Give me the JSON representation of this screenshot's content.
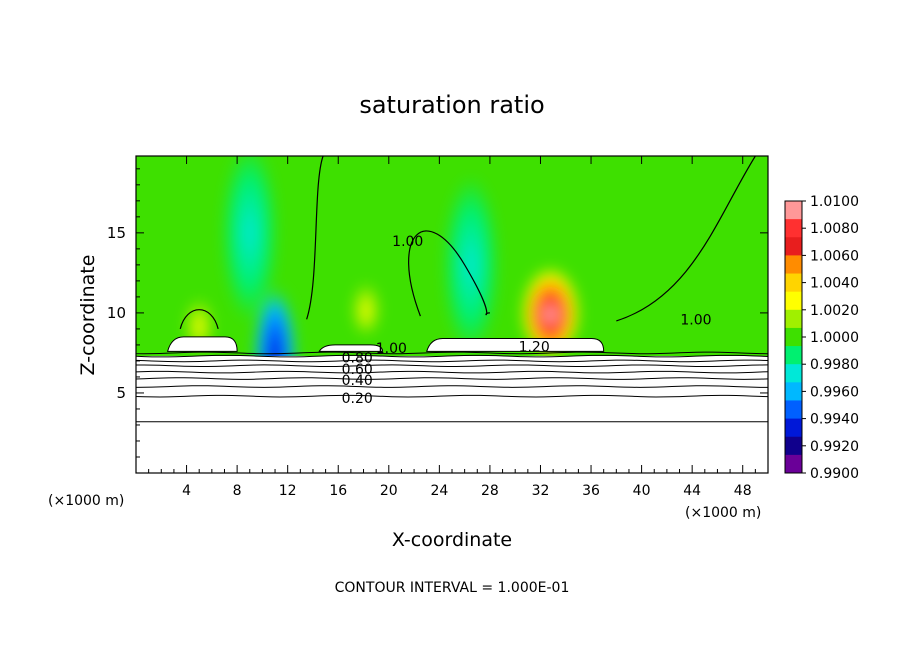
{
  "chart_data": {
    "type": "heatmap",
    "title": "saturation ratio",
    "xlabel": "X-coordinate",
    "ylabel": "Z-coordinate",
    "x_units": "(×1000 m)",
    "z_units": "(×1000 m)",
    "xlim": [
      0,
      50
    ],
    "ylim": [
      0,
      19.8
    ],
    "xticks": [
      4,
      8,
      12,
      16,
      20,
      24,
      28,
      32,
      36,
      40,
      44,
      48
    ],
    "yticks": [
      5,
      10,
      15
    ],
    "footer": "CONTOUR INTERVAL = 1.000E-01",
    "colorbar": {
      "labels": [
        "1.0100",
        "1.0080",
        "1.0060",
        "1.0040",
        "1.0020",
        "1.0000",
        "0.9980",
        "0.9960",
        "0.9940",
        "0.9920",
        "0.9900"
      ],
      "colors": [
        "#ff9898",
        "#ff3030",
        "#e81e1e",
        "#ff8c00",
        "#ffd400",
        "#ffff00",
        "#a0f000",
        "#3ee000",
        "#00f070",
        "#00e8d8",
        "#00b8ff",
        "#0060ff",
        "#0018d8",
        "#10008c",
        "#6a0098"
      ]
    },
    "contour_labels": [
      {
        "text": "1.00",
        "x": 21.5,
        "z": 14.5
      },
      {
        "text": "1.00",
        "x": 44.3,
        "z": 9.6
      },
      {
        "text": "1.20",
        "x": 31.5,
        "z": 7.9
      },
      {
        "text": "1.00",
        "x": 20.2,
        "z": 7.8
      },
      {
        "text": "0.80",
        "x": 17.5,
        "z": 7.2
      },
      {
        "text": "0.60",
        "x": 17.5,
        "z": 6.5
      },
      {
        "text": "0.40",
        "x": 17.5,
        "z": 5.8
      },
      {
        "text": "0.20",
        "x": 17.5,
        "z": 4.7
      }
    ],
    "contour_levels": [
      {
        "value": 0.2,
        "z": 4.8
      },
      {
        "value": 0.3,
        "z": 5.4
      },
      {
        "value": 0.4,
        "z": 5.9
      },
      {
        "value": 0.5,
        "z": 6.3
      },
      {
        "value": 0.6,
        "z": 6.7
      },
      {
        "value": 0.7,
        "z": 7.0
      },
      {
        "value": 0.8,
        "z": 7.3
      },
      {
        "value": 0.9,
        "z": 7.5
      }
    ],
    "low_contour_z": 3.2,
    "hot_spots": [
      {
        "x": 32.8,
        "z": 10.5,
        "peak": 1.008
      },
      {
        "x": 18.2,
        "z": 10.5,
        "peak": 1.003
      },
      {
        "x": 5.0,
        "z": 9.5,
        "peak": 1.002
      }
    ],
    "dry_columns": [
      {
        "x": 11.0,
        "z": 9.0,
        "min": 0.992
      },
      {
        "x": 9.0,
        "z": 15.0,
        "min": 0.996
      },
      {
        "x": 26.5,
        "z": 13.0,
        "min": 0.9985
      }
    ],
    "cloud_patches": [
      {
        "x0": 2.5,
        "x1": 8.0,
        "z": 8.5
      },
      {
        "x0": 14.5,
        "x1": 19.5,
        "z": 8.0
      },
      {
        "x0": 23.0,
        "x1": 37.0,
        "z": 8.4
      }
    ]
  }
}
